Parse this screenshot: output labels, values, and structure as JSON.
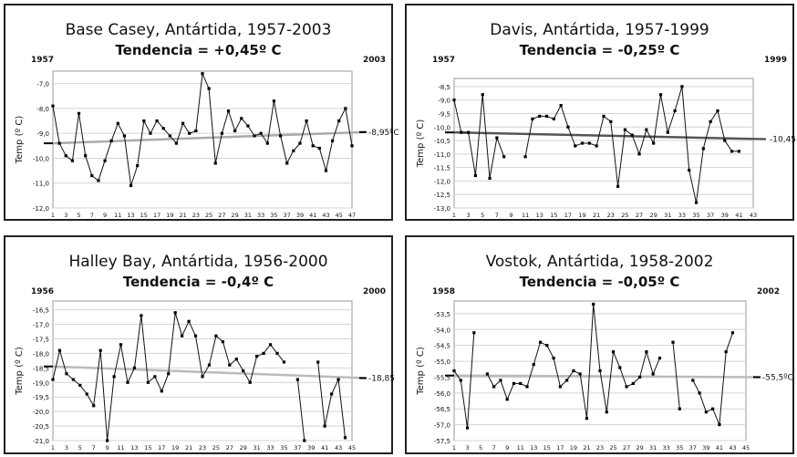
{
  "chart_data": [
    {
      "type": "line",
      "title": "Base Casey, Antártida, 1957-2003",
      "trend_label": "Tendencia = +0,45º C",
      "start_year_label": "1957",
      "end_year_label": "2003",
      "trend_end_label": "-8,95ºC",
      "ylabel": "Temp (º C)",
      "yticks": [
        "-7,0",
        "-8,0",
        "-9,0",
        "-10,0",
        "-11,0",
        "-12,0"
      ],
      "ylim": [
        -12,
        -6.5
      ],
      "xticks": [
        "1",
        "3",
        "5",
        "7",
        "9",
        "11",
        "13",
        "15",
        "17",
        "19",
        "21",
        "23",
        "25",
        "27",
        "29",
        "31",
        "33",
        "35",
        "37",
        "39",
        "41",
        "43",
        "45",
        "47"
      ],
      "xlim": [
        1,
        47
      ],
      "trend_line": [
        [
          1,
          -9.4
        ],
        [
          47,
          -8.95
        ]
      ],
      "series": [
        {
          "values": [
            -7.9,
            -9.4,
            -9.9,
            -10.1,
            -8.2,
            -9.9,
            -10.7,
            -10.9,
            -10.1,
            -9.3,
            -8.6,
            -9.1,
            -11.1,
            -10.3,
            -8.5,
            -9.0,
            -8.5,
            -8.8,
            -9.1,
            -9.4,
            -8.6,
            -9.0,
            -8.9,
            -6.6,
            -7.2,
            -10.2,
            -9.0,
            -8.1,
            -8.9,
            -8.4,
            -8.7,
            -9.1,
            -9.0,
            -9.4,
            -7.7,
            -9.1,
            -10.2,
            -9.7,
            -9.4,
            -8.5,
            -9.5,
            -9.6,
            -10.5,
            -9.3,
            -8.5,
            -8.0,
            -9.5
          ]
        }
      ]
    },
    {
      "type": "line",
      "title": "Davis, Antártida, 1957-1999",
      "trend_label": "Tendencia = -0,25º C",
      "start_year_label": "1957",
      "end_year_label": "1999",
      "trend_end_label": "-10,45",
      "ylabel": "Temp (º C)",
      "yticks": [
        "-8,5",
        "-9,0",
        "-9,5",
        "-10,0",
        "-10,5",
        "-11,0",
        "-11,5",
        "-12,0",
        "-12,5",
        "-13,0"
      ],
      "ylim": [
        -13,
        -8.2
      ],
      "xticks": [
        "1",
        "3",
        "5",
        "7",
        "9",
        "11",
        "13",
        "15",
        "17",
        "19",
        "21",
        "23",
        "25",
        "27",
        "29",
        "31",
        "33",
        "35",
        "37",
        "39",
        "41",
        "43"
      ],
      "xlim": [
        1,
        43
      ],
      "trend_line": [
        [
          1,
          -10.2
        ],
        [
          43,
          -10.45
        ]
      ],
      "series": [
        {
          "values": [
            -9.0,
            -10.2,
            -10.2,
            -11.8,
            -8.8,
            -11.9,
            -10.4,
            -11.1,
            null,
            null,
            -11.1,
            -9.7,
            -9.6,
            -9.6,
            -9.7,
            -9.2,
            -10.0,
            -10.7,
            -10.6,
            -10.6,
            -10.7,
            -9.6,
            -9.8,
            -12.2,
            -10.1,
            -10.3,
            -11.0,
            -10.1,
            -10.6,
            -8.8,
            -10.2,
            -9.4,
            -8.5,
            -11.6,
            -12.8,
            -10.8,
            -9.8,
            -9.4,
            -10.5,
            -10.9,
            -10.9
          ]
        }
      ]
    },
    {
      "type": "line",
      "title": "Halley Bay, Antártida, 1956-2000",
      "trend_label": "Tendencia = -0,4º C",
      "start_year_label": "1956",
      "end_year_label": "2000",
      "trend_end_label": "-18,85",
      "ylabel": "Temp (º C)",
      "yticks": [
        "-16,5",
        "-17,0",
        "-17,5",
        "-18,0",
        "-18,5",
        "-19,0",
        "-19,5",
        "-20,0",
        "-20,5",
        "-21,0"
      ],
      "ylim": [
        -21,
        -16.2
      ],
      "xticks": [
        "1",
        "3",
        "5",
        "7",
        "9",
        "11",
        "13",
        "15",
        "17",
        "19",
        "21",
        "23",
        "25",
        "27",
        "29",
        "31",
        "33",
        "35",
        "37",
        "39",
        "41",
        "43",
        "45"
      ],
      "xlim": [
        1,
        45
      ],
      "trend_line": [
        [
          1,
          -18.45
        ],
        [
          45,
          -18.85
        ]
      ],
      "series": [
        {
          "values": [
            -18.9,
            -17.9,
            -18.7,
            -18.9,
            -19.1,
            -19.4,
            -19.8,
            -17.9,
            -21.0,
            -18.8,
            -17.7,
            -19.0,
            -18.5,
            -16.7,
            -19.0,
            -18.8,
            -19.3,
            -18.7,
            -16.6,
            -17.4,
            -16.9,
            -17.4,
            -18.8,
            -18.4,
            -17.4,
            -17.6,
            -18.4,
            -18.2,
            -18.6,
            -19.0,
            -18.1,
            -18.0,
            -17.7,
            -18.0,
            -18.3,
            null,
            -18.9,
            -21.0,
            null,
            -18.3,
            -20.5,
            -19.4,
            -18.9,
            -20.9
          ]
        }
      ]
    },
    {
      "type": "line",
      "title": "Vostok, Antártida, 1958-2002",
      "trend_label": "Tendencia = -0,05º C",
      "start_year_label": "1958",
      "end_year_label": "2002",
      "trend_end_label": "-55,5ºC",
      "ylabel": "Temp (º C)",
      "yticks": [
        "-53,5",
        "-54,0",
        "-54,5",
        "-55,0",
        "-55,5",
        "-56,0",
        "-56,5",
        "-57,0",
        "-57,5"
      ],
      "ylim": [
        -57.5,
        -53.1
      ],
      "xticks": [
        "1",
        "3",
        "5",
        "7",
        "9",
        "11",
        "13",
        "15",
        "17",
        "19",
        "21",
        "23",
        "25",
        "27",
        "29",
        "31",
        "33",
        "35",
        "37",
        "39",
        "41",
        "43",
        "45"
      ],
      "xlim": [
        1,
        45
      ],
      "trend_line": [
        [
          1,
          -55.45
        ],
        [
          45,
          -55.5
        ]
      ],
      "series": [
        {
          "values": [
            -55.3,
            -55.6,
            -57.1,
            -54.1,
            null,
            -55.4,
            -55.8,
            -55.6,
            -56.2,
            -55.7,
            -55.7,
            -55.8,
            -55.1,
            -54.4,
            -54.5,
            -54.9,
            -55.8,
            -55.6,
            -55.3,
            -55.4,
            -56.8,
            -53.2,
            -55.3,
            -56.6,
            -54.7,
            -55.2,
            -55.8,
            -55.7,
            -55.5,
            -54.7,
            -55.4,
            -54.9,
            null,
            -54.4,
            -56.5,
            null,
            -55.6,
            -56.0,
            -56.6,
            -56.5,
            -57.0,
            -54.7,
            -54.1
          ]
        }
      ]
    }
  ]
}
